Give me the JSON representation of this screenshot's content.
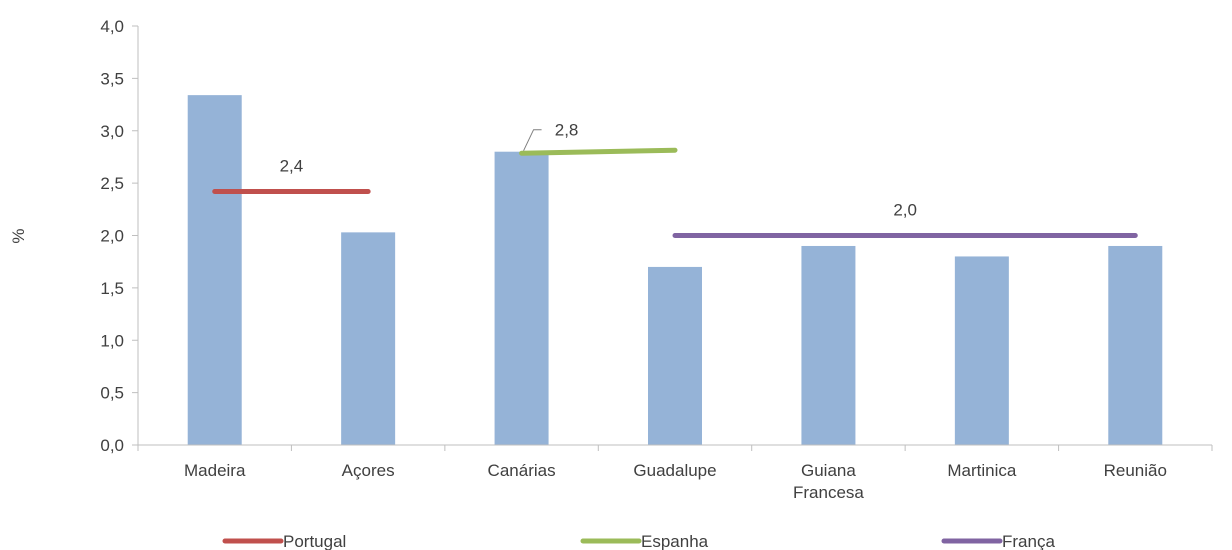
{
  "chart_data": {
    "type": "bar",
    "ylabel": "%",
    "ylim": [
      0,
      4
    ],
    "ytick_labels": [
      "0,0",
      "0,5",
      "1,0",
      "1,5",
      "2,0",
      "2,5",
      "3,0",
      "3,5",
      "4,0"
    ],
    "categories": [
      [
        "Madeira"
      ],
      [
        "Açores"
      ],
      [
        "Canárias"
      ],
      [
        "Guadalupe"
      ],
      [
        "Guiana",
        "Francesa"
      ],
      [
        "Martinica"
      ],
      [
        "Reunião"
      ]
    ],
    "values": [
      3.34,
      2.03,
      2.8,
      1.7,
      1.9,
      1.8,
      1.9
    ],
    "bar_color": "#95b3d7",
    "grid": false,
    "lines": [
      {
        "name": "Portugal",
        "color": "#c0504d",
        "from": 0,
        "to": 1,
        "value": 2.42,
        "label": "2,4"
      },
      {
        "name": "Espanha",
        "color": "#9bbb59",
        "from": 2,
        "to": 3,
        "value": 2.8,
        "label": "2,8"
      },
      {
        "name": "França",
        "color": "#8064a2",
        "from": 3,
        "to": 6,
        "value": 2.0,
        "label": "2,0"
      }
    ],
    "legend_position": "bottom"
  }
}
